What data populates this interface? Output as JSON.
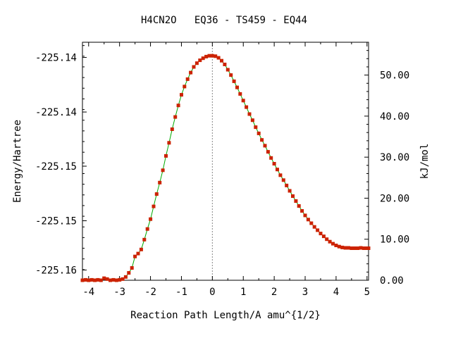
{
  "chart_data": {
    "type": "line",
    "title": "H4CN2O   EQ36 - TS459 - EQ44",
    "xlabel": "Reaction Path Length/A amu^{1/2}",
    "ylabel_left": "Energy/Hartree",
    "ylabel_right": "kJ/mol",
    "xlim": [
      -4.2,
      5.05
    ],
    "right_ylim_kjmol": [
      0.0,
      58.0
    ],
    "x_ticks": [
      "-4",
      "-3",
      "-2",
      "-1",
      "0",
      "1",
      "2",
      "3",
      "4",
      "5"
    ],
    "left_ticks": [
      {
        "label": "-225.14",
        "kjmol": 54.3
      },
      {
        "label": "-225.14",
        "kjmol": 41.0
      },
      {
        "label": "-225.15",
        "kjmol": 27.8
      },
      {
        "label": "-225.15",
        "kjmol": 14.5
      },
      {
        "label": "-225.16",
        "kjmol": 2.5
      }
    ],
    "right_ticks": [
      "0.00",
      "10.00",
      "20.00",
      "30.00",
      "40.00",
      "50.00"
    ],
    "ts_marker_x": 0.0,
    "grid": false,
    "series": [
      {
        "color": "#cc2200",
        "line_color": "#00aa00",
        "points": [
          [
            -4.2,
            0.0
          ],
          [
            -4.1,
            0.1
          ],
          [
            -4.0,
            0.0
          ],
          [
            -3.9,
            0.1
          ],
          [
            -3.8,
            0.0
          ],
          [
            -3.7,
            0.1
          ],
          [
            -3.6,
            0.0
          ],
          [
            -3.5,
            0.5
          ],
          [
            -3.4,
            0.3
          ],
          [
            -3.3,
            0.0
          ],
          [
            -3.2,
            0.1
          ],
          [
            -3.1,
            0.0
          ],
          [
            -3.0,
            0.1
          ],
          [
            -2.9,
            0.3
          ],
          [
            -2.8,
            0.8
          ],
          [
            -2.7,
            1.8
          ],
          [
            -2.6,
            3.0
          ],
          [
            -2.5,
            5.8
          ],
          [
            -2.4,
            6.5
          ],
          [
            -2.3,
            7.5
          ],
          [
            -2.2,
            9.9
          ],
          [
            -2.1,
            12.5
          ],
          [
            -2.0,
            14.9
          ],
          [
            -1.9,
            18.0
          ],
          [
            -1.8,
            21.0
          ],
          [
            -1.7,
            23.8
          ],
          [
            -1.6,
            26.8
          ],
          [
            -1.5,
            30.3
          ],
          [
            -1.4,
            33.5
          ],
          [
            -1.3,
            36.8
          ],
          [
            -1.2,
            39.8
          ],
          [
            -1.1,
            42.6
          ],
          [
            -1.0,
            45.2
          ],
          [
            -0.9,
            47.2
          ],
          [
            -0.8,
            49.0
          ],
          [
            -0.7,
            50.6
          ],
          [
            -0.6,
            52.0
          ],
          [
            -0.5,
            52.9
          ],
          [
            -0.4,
            53.6
          ],
          [
            -0.3,
            54.1
          ],
          [
            -0.2,
            54.5
          ],
          [
            -0.1,
            54.7
          ],
          [
            0.0,
            54.7
          ],
          [
            0.1,
            54.6
          ],
          [
            0.2,
            54.2
          ],
          [
            0.3,
            53.5
          ],
          [
            0.4,
            52.6
          ],
          [
            0.5,
            51.3
          ],
          [
            0.6,
            50.0
          ],
          [
            0.7,
            48.5
          ],
          [
            0.8,
            47.0
          ],
          [
            0.9,
            45.4
          ],
          [
            1.0,
            43.8
          ],
          [
            1.1,
            42.2
          ],
          [
            1.2,
            40.5
          ],
          [
            1.3,
            39.0
          ],
          [
            1.4,
            37.3
          ],
          [
            1.5,
            35.8
          ],
          [
            1.6,
            34.2
          ],
          [
            1.7,
            32.8
          ],
          [
            1.8,
            31.3
          ],
          [
            1.9,
            29.8
          ],
          [
            2.0,
            28.4
          ],
          [
            2.1,
            27.0
          ],
          [
            2.2,
            25.6
          ],
          [
            2.3,
            24.4
          ],
          [
            2.4,
            23.1
          ],
          [
            2.5,
            21.8
          ],
          [
            2.6,
            20.5
          ],
          [
            2.7,
            19.3
          ],
          [
            2.8,
            18.1
          ],
          [
            2.9,
            16.9
          ],
          [
            3.0,
            15.8
          ],
          [
            3.1,
            14.8
          ],
          [
            3.2,
            13.9
          ],
          [
            3.3,
            13.0
          ],
          [
            3.4,
            12.2
          ],
          [
            3.5,
            11.4
          ],
          [
            3.6,
            10.7
          ],
          [
            3.7,
            10.0
          ],
          [
            3.8,
            9.4
          ],
          [
            3.9,
            8.9
          ],
          [
            4.0,
            8.5
          ],
          [
            4.1,
            8.2
          ],
          [
            4.2,
            8.0
          ],
          [
            4.3,
            7.9
          ],
          [
            4.4,
            7.9
          ],
          [
            4.5,
            7.8
          ],
          [
            4.6,
            7.8
          ],
          [
            4.7,
            7.8
          ],
          [
            4.8,
            7.9
          ],
          [
            4.9,
            7.8
          ],
          [
            5.0,
            7.8
          ],
          [
            5.05,
            7.8
          ]
        ]
      }
    ]
  }
}
